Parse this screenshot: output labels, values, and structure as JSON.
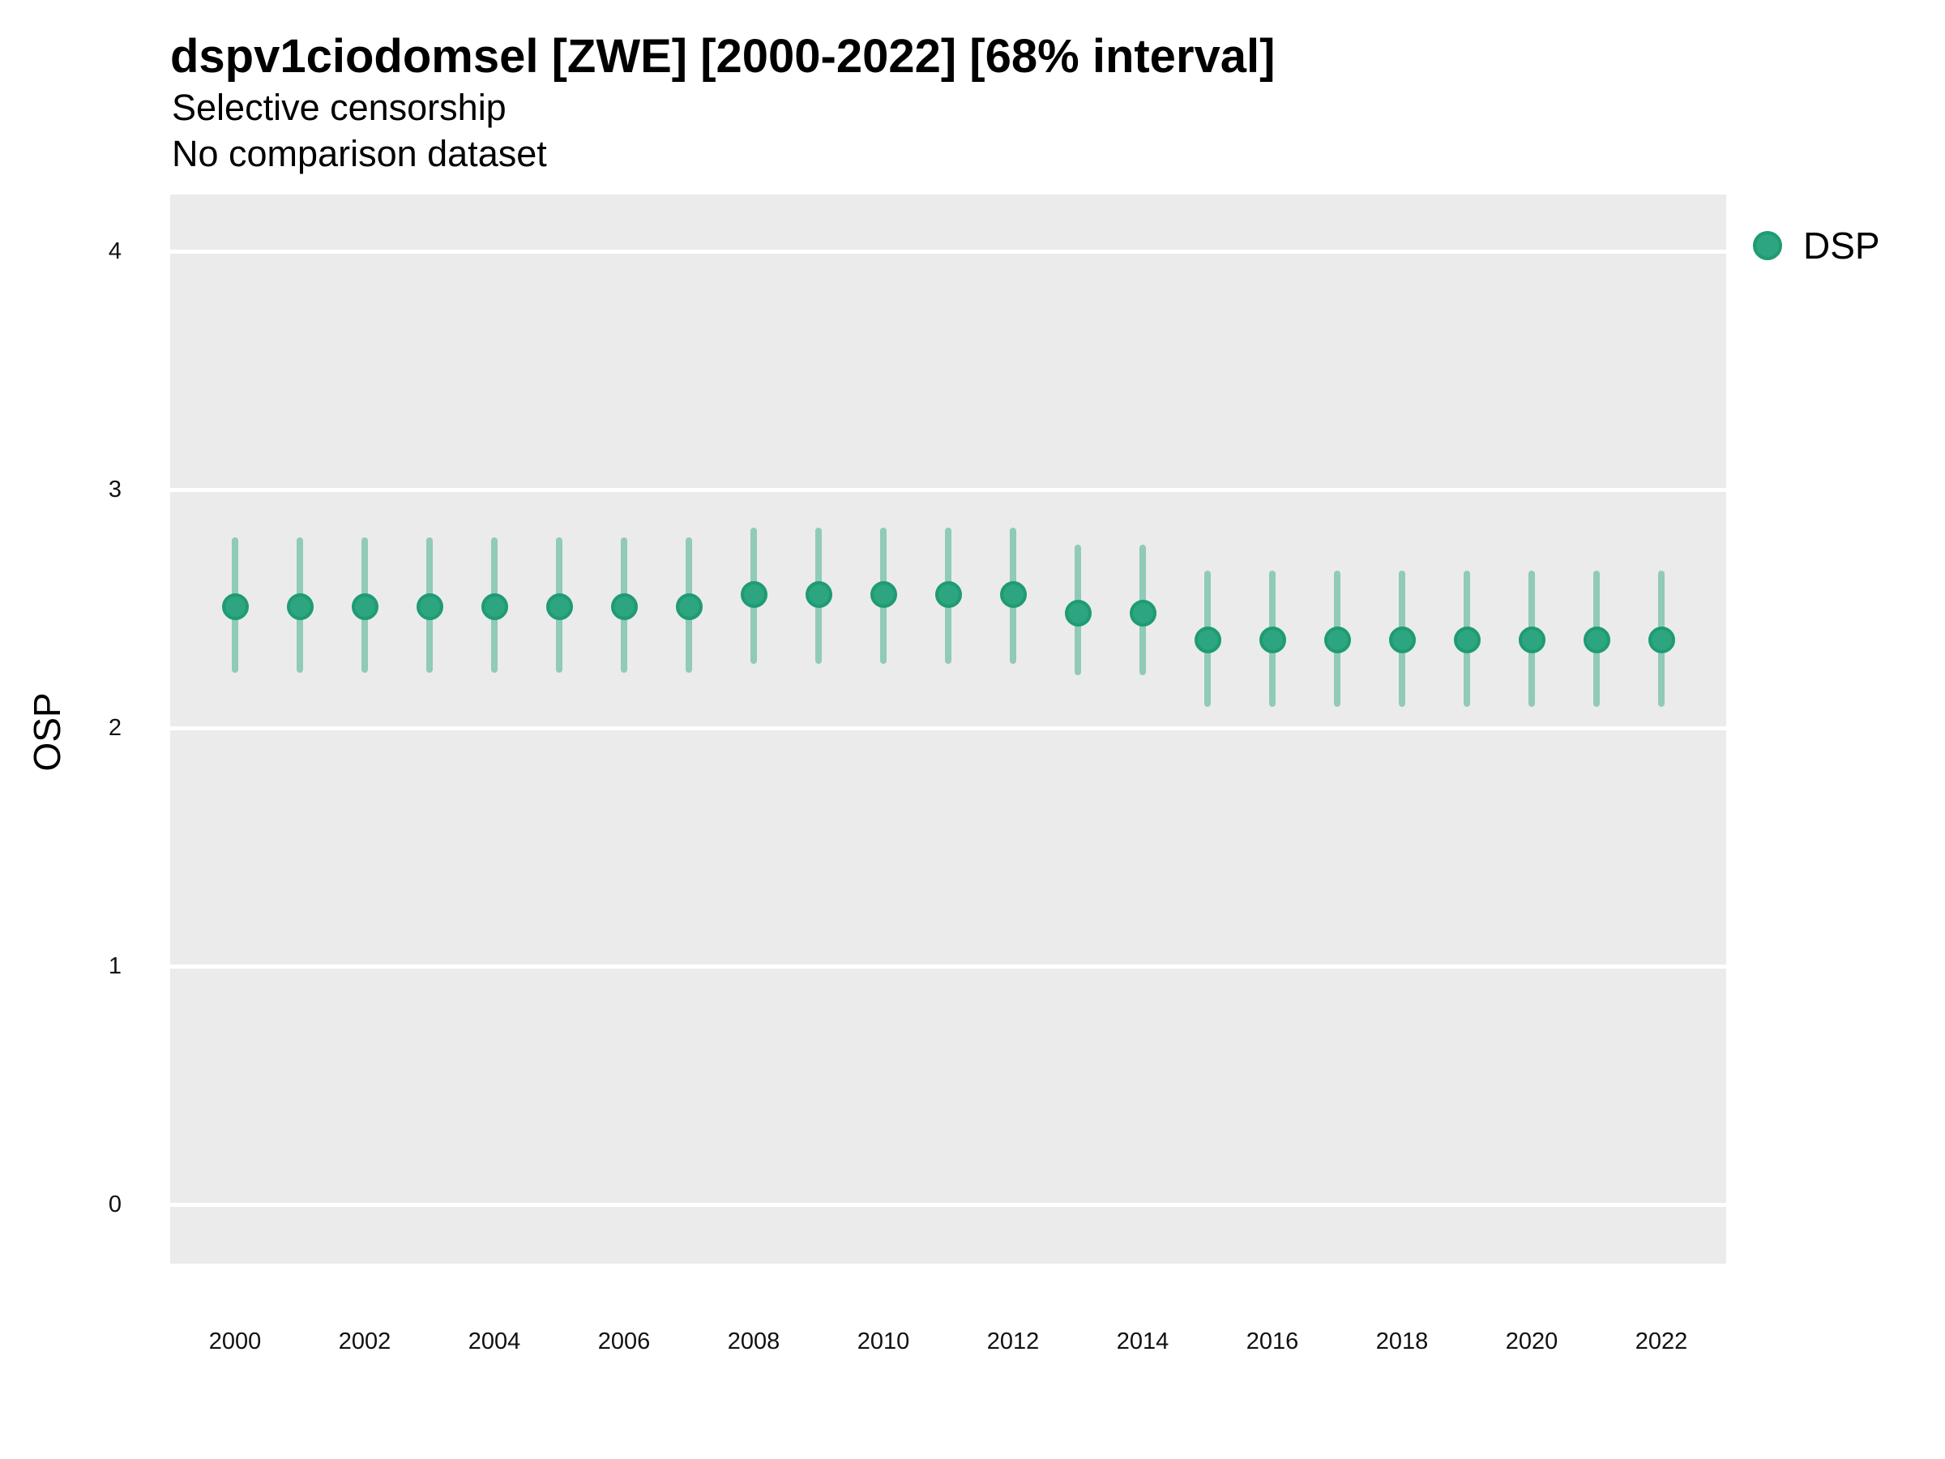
{
  "title": "dspv1ciodomsel [ZWE] [2000-2022] [68% interval]",
  "subtitle1": "Selective censorship",
  "subtitle2": "No comparison dataset",
  "ylabel": "OSP",
  "legend": {
    "items": [
      {
        "label": "DSP",
        "color": "#2ca580"
      }
    ],
    "position": "right-top"
  },
  "colors": {
    "point_fill": "#2ca580",
    "point_stroke": "#1f9b72",
    "interval_fill": "#2ca580",
    "interval_opacity": 0.48,
    "panel_background": "#ebebeb",
    "gridline": "#ffffff",
    "text": "#000000"
  },
  "chart_data": {
    "type": "pointrange",
    "title": "dspv1ciodomsel [ZWE] [2000-2022] [68% interval]",
    "subtitle": "Selective censorship / No comparison dataset",
    "interval_level": "68%",
    "xlabel": "",
    "ylabel": "OSP",
    "ylim": [
      0,
      4
    ],
    "y_ticks": [
      0,
      1,
      2,
      3,
      4
    ],
    "x_ticks": [
      2000,
      2002,
      2004,
      2006,
      2008,
      2010,
      2012,
      2014,
      2016,
      2018,
      2020,
      2022
    ],
    "grid": "horizontal-major-only",
    "legend_position": "right-top",
    "x": [
      2000,
      2001,
      2002,
      2003,
      2004,
      2005,
      2006,
      2007,
      2008,
      2009,
      2010,
      2011,
      2012,
      2013,
      2014,
      2015,
      2016,
      2017,
      2018,
      2019,
      2020,
      2021,
      2022
    ],
    "series": [
      {
        "name": "DSP",
        "values": [
          2.51,
          2.51,
          2.51,
          2.51,
          2.51,
          2.51,
          2.51,
          2.51,
          2.56,
          2.56,
          2.56,
          2.56,
          2.56,
          2.48,
          2.48,
          2.37,
          2.37,
          2.37,
          2.37,
          2.37,
          2.37,
          2.37,
          2.37
        ],
        "lower": [
          2.23,
          2.23,
          2.23,
          2.23,
          2.23,
          2.23,
          2.23,
          2.23,
          2.27,
          2.27,
          2.27,
          2.27,
          2.27,
          2.22,
          2.22,
          2.09,
          2.09,
          2.09,
          2.09,
          2.09,
          2.09,
          2.09,
          2.09
        ],
        "upper": [
          2.8,
          2.8,
          2.8,
          2.8,
          2.8,
          2.8,
          2.8,
          2.8,
          2.84,
          2.84,
          2.84,
          2.84,
          2.84,
          2.77,
          2.77,
          2.66,
          2.66,
          2.66,
          2.66,
          2.66,
          2.66,
          2.66,
          2.66
        ]
      }
    ]
  }
}
